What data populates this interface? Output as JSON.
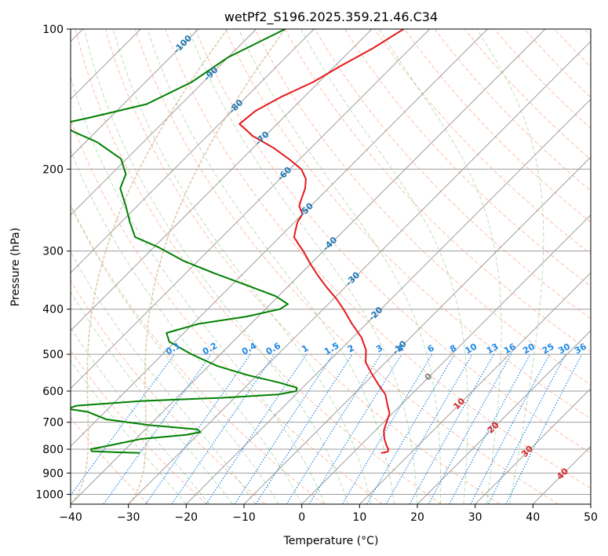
{
  "chart_data": {
    "type": "skew-t",
    "title": "wetPf2_S196.2025.359.21.46.C34",
    "xlabel": "Temperature (°C)",
    "ylabel": "Pressure (hPa)",
    "xlim": [
      -40,
      50
    ],
    "ylim": [
      1050,
      100
    ],
    "y_scale": "log",
    "grid": true,
    "x_ticks": [
      "−40",
      "−30",
      "−20",
      "−10",
      "0",
      "10",
      "20",
      "30",
      "40",
      "50"
    ],
    "y_ticks": [
      "100",
      "200",
      "300",
      "400",
      "500",
      "600",
      "700",
      "800",
      "900",
      "1000"
    ],
    "colors": {
      "temperature": "#e41a1c",
      "dewpoint": "#008000",
      "dry_adiabat": "#fc8d62",
      "moist_adiabat": "#66bb6a",
      "mixing_ratio": "#1e88e5",
      "isotherm": "#9e9e9e",
      "isotherm_label_cold": "#1f77b4",
      "isotherm_label_warm": "#d62728",
      "isotherm_label_zero": "#808080",
      "wetbulb_curve": "#d2b48c"
    },
    "isotherm_labels": [
      {
        "t": -100,
        "text": "-100"
      },
      {
        "t": -90,
        "text": "-90"
      },
      {
        "t": -80,
        "text": "-80"
      },
      {
        "t": -70,
        "text": "-70"
      },
      {
        "t": -60,
        "text": "-60"
      },
      {
        "t": -50,
        "text": "-50"
      },
      {
        "t": -40,
        "text": "-40"
      },
      {
        "t": -30,
        "text": "-30"
      },
      {
        "t": -20,
        "text": "-20"
      },
      {
        "t": -10,
        "text": "-10"
      },
      {
        "t": 0,
        "text": "0"
      },
      {
        "t": 10,
        "text": "10"
      },
      {
        "t": 20,
        "text": "20"
      },
      {
        "t": 30,
        "text": "30"
      },
      {
        "t": 40,
        "text": "40"
      }
    ],
    "mixing_ratio_labels": [
      "0.1",
      "0.2",
      "0.4",
      "0.6",
      "1",
      "1.5",
      "2",
      "3",
      "4",
      "6",
      "8",
      "10",
      "13",
      "16",
      "20",
      "25",
      "30",
      "36"
    ],
    "mixing_ratio_values": [
      0.1,
      0.2,
      0.4,
      0.6,
      1,
      1.5,
      2,
      3,
      4,
      6,
      8,
      10,
      13,
      16,
      20,
      25,
      30,
      36
    ],
    "series": [
      {
        "name": "Temperature",
        "points": [
          [
            100,
            -64.5
          ],
          [
            110,
            -66.5
          ],
          [
            120,
            -69
          ],
          [
            130,
            -71
          ],
          [
            140,
            -74
          ],
          [
            150,
            -76
          ],
          [
            160,
            -76.5
          ],
          [
            170,
            -72
          ],
          [
            180,
            -66.5
          ],
          [
            190,
            -62
          ],
          [
            200,
            -58
          ],
          [
            210,
            -55.5
          ],
          [
            220,
            -54
          ],
          [
            230,
            -53
          ],
          [
            240,
            -52
          ],
          [
            250,
            -50
          ],
          [
            260,
            -49.5
          ],
          [
            270,
            -48.5
          ],
          [
            280,
            -47.5
          ],
          [
            290,
            -45.5
          ],
          [
            300,
            -43.5
          ],
          [
            320,
            -40
          ],
          [
            340,
            -36.5
          ],
          [
            360,
            -33
          ],
          [
            380,
            -29.5
          ],
          [
            400,
            -26.5
          ],
          [
            430,
            -22.5
          ],
          [
            460,
            -18.5
          ],
          [
            490,
            -15.5
          ],
          [
            520,
            -13.5
          ],
          [
            550,
            -10.5
          ],
          [
            580,
            -7.5
          ],
          [
            610,
            -4.5
          ],
          [
            640,
            -2.5
          ],
          [
            670,
            -0.5
          ],
          [
            700,
            0.5
          ],
          [
            730,
            1.5
          ],
          [
            760,
            3
          ],
          [
            790,
            4.8
          ],
          [
            800,
            5.5
          ],
          [
            810,
            5.8
          ],
          [
            815,
            5
          ]
        ]
      },
      {
        "name": "Dewpoint",
        "points": [
          [
            100,
            -85
          ],
          [
            115,
            -90
          ],
          [
            130,
            -92
          ],
          [
            145,
            -96
          ],
          [
            155,
            -103.5
          ],
          [
            160,
            -107.5
          ],
          [
            166,
            -104
          ],
          [
            175,
            -98
          ],
          [
            190,
            -91
          ],
          [
            205,
            -87.5
          ],
          [
            220,
            -86
          ],
          [
            240,
            -82
          ],
          [
            260,
            -78.5
          ],
          [
            280,
            -75
          ],
          [
            295,
            -69
          ],
          [
            315,
            -62.5
          ],
          [
            335,
            -55
          ],
          [
            355,
            -47.5
          ],
          [
            375,
            -40.5
          ],
          [
            390,
            -37
          ],
          [
            400,
            -37.5
          ],
          [
            415,
            -42
          ],
          [
            430,
            -49
          ],
          [
            450,
            -53
          ],
          [
            470,
            -51
          ],
          [
            500,
            -45
          ],
          [
            530,
            -38.5
          ],
          [
            555,
            -31.5
          ],
          [
            575,
            -25
          ],
          [
            590,
            -21
          ],
          [
            600,
            -20.5
          ],
          [
            610,
            -23
          ],
          [
            620,
            -32
          ],
          [
            630,
            -45.5
          ],
          [
            645,
            -56
          ],
          [
            655,
            -57
          ],
          [
            665,
            -53
          ],
          [
            690,
            -48.5
          ],
          [
            710,
            -40
          ],
          [
            725,
            -31
          ],
          [
            735,
            -30
          ],
          [
            745,
            -32
          ],
          [
            760,
            -39
          ],
          [
            780,
            -42.5
          ],
          [
            800,
            -46
          ],
          [
            808,
            -45.5
          ],
          [
            812,
            -41
          ],
          [
            815,
            -37
          ]
        ]
      }
    ]
  }
}
